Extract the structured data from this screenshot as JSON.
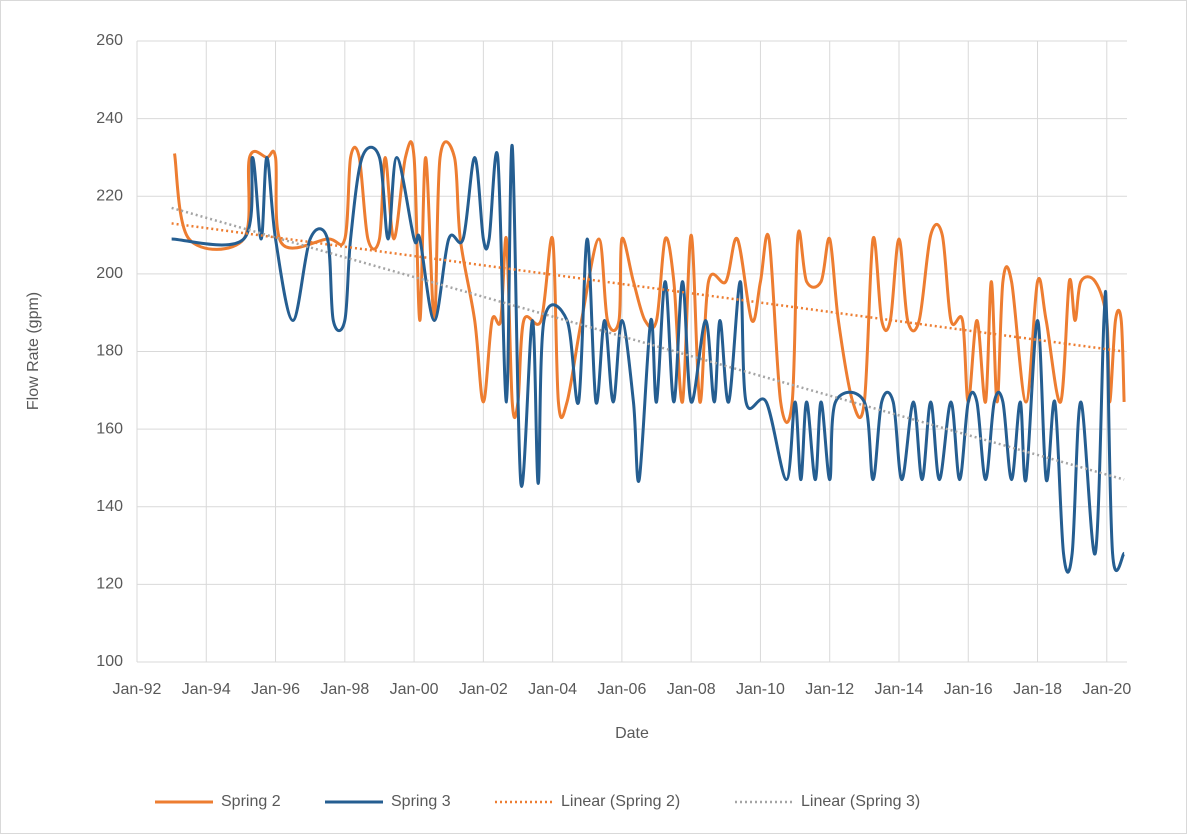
{
  "chart_data": {
    "type": "line",
    "x_label": "Date",
    "y_label": "Flow Rate (gpm)",
    "xlim": [
      "1992-01",
      "2020-08"
    ],
    "xticks": [
      {
        "value": "1992-01",
        "label": "Jan-92"
      },
      {
        "value": "1994-01",
        "label": "Jan-94"
      },
      {
        "value": "1996-01",
        "label": "Jan-96"
      },
      {
        "value": "1998-01",
        "label": "Jan-98"
      },
      {
        "value": "2000-01",
        "label": "Jan-00"
      },
      {
        "value": "2002-01",
        "label": "Jan-02"
      },
      {
        "value": "2004-01",
        "label": "Jan-04"
      },
      {
        "value": "2006-01",
        "label": "Jan-06"
      },
      {
        "value": "2008-01",
        "label": "Jan-08"
      },
      {
        "value": "2010-01",
        "label": "Jan-10"
      },
      {
        "value": "2012-01",
        "label": "Jan-12"
      },
      {
        "value": "2014-01",
        "label": "Jan-14"
      },
      {
        "value": "2016-01",
        "label": "Jan-16"
      },
      {
        "value": "2018-01",
        "label": "Jan-18"
      },
      {
        "value": "2020-01",
        "label": "Jan-20"
      }
    ],
    "ylim": [
      100,
      260
    ],
    "yticks": [
      100,
      120,
      140,
      160,
      180,
      200,
      220,
      240,
      260
    ],
    "grid": true,
    "legend": "bottom",
    "series": [
      {
        "name": "Spring 2",
        "color": "#ED7D31",
        "style": "smooth",
        "x": [
          "1993-02",
          "1993-07",
          "1995-02",
          "1995-04",
          "1995-10",
          "1996-01",
          "1996-03",
          "1997-07",
          "1998-01",
          "1998-03",
          "1998-06",
          "1998-09",
          "1999-01",
          "1999-03",
          "1999-06",
          "1999-10",
          "2000-01",
          "2000-03",
          "2000-05",
          "2000-08",
          "2000-10",
          "2001-03",
          "2001-05",
          "2001-10",
          "2002-01",
          "2002-04",
          "2002-07",
          "2002-09",
          "2002-11",
          "2003-01",
          "2003-03",
          "2003-09",
          "2004-01",
          "2004-03",
          "2004-06",
          "2004-11",
          "2005-05",
          "2005-08",
          "2005-12",
          "2006-01",
          "2006-05",
          "2006-09",
          "2007-01",
          "2007-04",
          "2007-07",
          "2007-10",
          "2008-01",
          "2008-04",
          "2008-07",
          "2009-01",
          "2009-05",
          "2009-10",
          "2010-01",
          "2010-04",
          "2010-08",
          "2010-12",
          "2011-02",
          "2011-05",
          "2011-10",
          "2012-01",
          "2012-04",
          "2012-09",
          "2013-01",
          "2013-04",
          "2013-07",
          "2013-10",
          "2014-01",
          "2014-04",
          "2014-08",
          "2014-12",
          "2015-04",
          "2015-07",
          "2015-11",
          "2016-01",
          "2016-04",
          "2016-07",
          "2016-09",
          "2016-11",
          "2017-01",
          "2017-04",
          "2017-09",
          "2018-01",
          "2018-04",
          "2018-09",
          "2018-12",
          "2019-02",
          "2019-04",
          "2019-09",
          "2020-01",
          "2020-02",
          "2020-04",
          "2020-06",
          "2020-07"
        ],
        "values": [
          231,
          209,
          209,
          230,
          230,
          230,
          208,
          209,
          209,
          230,
          230,
          209,
          209,
          230,
          209,
          230,
          230,
          188,
          230,
          188,
          230,
          230,
          209,
          188,
          167,
          188,
          188,
          209,
          167,
          167,
          188,
          188,
          209,
          167,
          167,
          188,
          209,
          188,
          188,
          209,
          198,
          188,
          188,
          209,
          198,
          167,
          210,
          167,
          198,
          198,
          209,
          188,
          198,
          209,
          167,
          167,
          210,
          198,
          198,
          209,
          188,
          167,
          167,
          209,
          188,
          188,
          209,
          188,
          188,
          210,
          210,
          188,
          188,
          167,
          188,
          167,
          198,
          167,
          198,
          198,
          167,
          198,
          188,
          167,
          198,
          188,
          198,
          198,
          188,
          167,
          188,
          188,
          167
        ]
      },
      {
        "name": "Spring 3",
        "color": "#255E91",
        "style": "smooth",
        "x": [
          "1993-01",
          "1995-02",
          "1995-05",
          "1995-08",
          "1995-10",
          "1996-01",
          "1996-07",
          "1997-01",
          "1997-07",
          "1997-09",
          "1998-01",
          "1998-03",
          "1998-07",
          "1999-01",
          "1999-04",
          "1999-07",
          "2000-01",
          "2000-03",
          "2000-08",
          "2001-01",
          "2001-06",
          "2001-10",
          "2002-01",
          "2002-03",
          "2002-06",
          "2002-09",
          "2002-11",
          "2003-02",
          "2003-06",
          "2003-08",
          "2003-10",
          "2004-06",
          "2004-10",
          "2005-01",
          "2005-04",
          "2005-07",
          "2005-10",
          "2006-01",
          "2006-05",
          "2006-07",
          "2006-11",
          "2007-01",
          "2007-04",
          "2007-07",
          "2007-10",
          "2008-01",
          "2008-06",
          "2008-09",
          "2008-11",
          "2009-02",
          "2009-06",
          "2009-08",
          "2010-03",
          "2010-10",
          "2011-01",
          "2011-03",
          "2011-05",
          "2011-08",
          "2011-10",
          "2012-01",
          "2012-03",
          "2013-01",
          "2013-04",
          "2013-07",
          "2013-11",
          "2014-02",
          "2014-06",
          "2014-09",
          "2014-12",
          "2015-03",
          "2015-07",
          "2015-10",
          "2016-01",
          "2016-04",
          "2016-07",
          "2016-10",
          "2017-01",
          "2017-04",
          "2017-07",
          "2017-09",
          "2018-01",
          "2018-04",
          "2018-07",
          "2018-10",
          "2019-01",
          "2019-04",
          "2019-09",
          "2019-12",
          "2020-01",
          "2020-03",
          "2020-07"
        ],
        "values": [
          209,
          209,
          230,
          209,
          230,
          209,
          188,
          209,
          209,
          188,
          188,
          209,
          230,
          230,
          209,
          230,
          209,
          209,
          188,
          209,
          209,
          230,
          209,
          209,
          230,
          167,
          233,
          146,
          188,
          146,
          188,
          188,
          167,
          209,
          167,
          188,
          167,
          188,
          167,
          147,
          188,
          167,
          198,
          167,
          198,
          167,
          188,
          167,
          188,
          167,
          198,
          167,
          167,
          147,
          167,
          147,
          167,
          147,
          167,
          147,
          167,
          167,
          147,
          167,
          167,
          147,
          167,
          147,
          167,
          147,
          167,
          147,
          167,
          167,
          147,
          167,
          167,
          147,
          167,
          147,
          188,
          147,
          167,
          128,
          128,
          167,
          128,
          188,
          188,
          128,
          128
        ]
      },
      {
        "name": "Linear (Spring 2)",
        "color": "#ED7D31",
        "style": "dotted",
        "x": [
          "1993-01",
          "2020-07"
        ],
        "values": [
          213,
          180
        ]
      },
      {
        "name": "Linear (Spring 3)",
        "color": "#A5A5A5",
        "style": "dotted",
        "x": [
          "1993-01",
          "2020-07"
        ],
        "values": [
          217,
          147
        ]
      }
    ]
  }
}
